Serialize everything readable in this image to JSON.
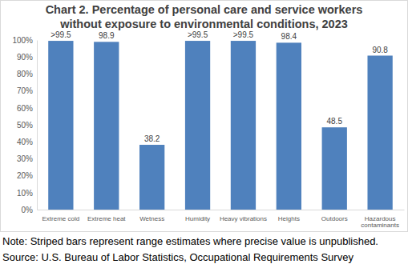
{
  "chart_data": {
    "type": "bar",
    "title": [
      "Chart 2. Percentage of personal care and service workers",
      "without exposure to environmental conditions, 2023"
    ],
    "categories": [
      "Extreme cold",
      "Extreme heat",
      "Wetness",
      "Humidity",
      "Heavy vibrations",
      "Heights",
      "Outdoors",
      "Hazardous contaminants"
    ],
    "values": [
      99.5,
      98.9,
      38.2,
      99.5,
      99.5,
      98.4,
      48.5,
      90.8
    ],
    "value_labels": [
      ">99.5",
      "98.9",
      "38.2",
      ">99.5",
      ">99.5",
      "98.4",
      "48.5",
      "90.8"
    ],
    "color": "#4f81bd",
    "ylim": [
      0,
      100
    ],
    "yticks": [
      {
        "value": 0,
        "label": "0%"
      },
      {
        "value": 10,
        "label": "10%"
      },
      {
        "value": 20,
        "label": "20%"
      },
      {
        "value": 30,
        "label": "30%"
      },
      {
        "value": 40,
        "label": "40%"
      },
      {
        "value": 50,
        "label": "50%"
      },
      {
        "value": 60,
        "label": "60%"
      },
      {
        "value": 70,
        "label": "70%"
      },
      {
        "value": 80,
        "label": "80%"
      },
      {
        "value": 90,
        "label": "90%"
      },
      {
        "value": 100,
        "label": "100%"
      }
    ],
    "grid": false,
    "data_labels": true,
    "note": "Note: Striped bars represent range estimates where precise value is unpublished.",
    "source": "Source: U.S. Bureau of Labor Statistics, Occupational Requirements Survey"
  }
}
